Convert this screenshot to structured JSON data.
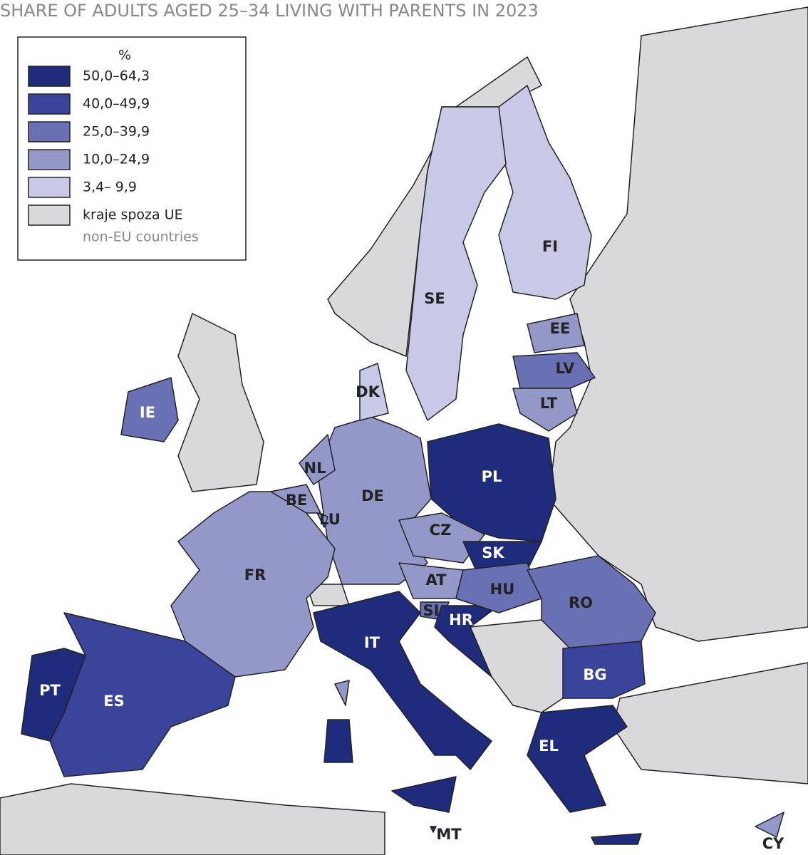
{
  "title": "SHARE OF ADULTS AGED 25–34 LIVING WITH PARENTS IN 2023",
  "legend": {
    "unit": "%",
    "items": [
      {
        "label": "50,0–64,3",
        "color": "#1f2b7b"
      },
      {
        "label": "40,0–49,9",
        "color": "#3a449a"
      },
      {
        "label": "25,0–39,9",
        "color": "#6a70b4"
      },
      {
        "label": "10,0–24,9",
        "color": "#9398c8"
      },
      {
        "label": "3,4– 9,9",
        "color": "#c7c9e6"
      },
      {
        "label": "kraje spoza UE",
        "sublabel": "non-EU countries",
        "color": "#d9d9dc"
      }
    ]
  },
  "countries": [
    {
      "label": "FI",
      "color": "#c7c9e6"
    },
    {
      "label": "SE",
      "color": "#c7c9e6"
    },
    {
      "label": "EE",
      "color": "#9398c8"
    },
    {
      "label": "LV",
      "color": "#6a70b4"
    },
    {
      "label": "LT",
      "color": "#9398c8"
    },
    {
      "label": "PL",
      "color": "#1f2b7b"
    },
    {
      "label": "DE",
      "color": "#9398c8"
    },
    {
      "label": "NL",
      "color": "#9398c8"
    },
    {
      "label": "BE",
      "color": "#9398c8"
    },
    {
      "label": "LU",
      "color": "#9398c8"
    },
    {
      "label": "DK",
      "color": "#c7c9e6"
    },
    {
      "label": "FR",
      "color": "#9398c8"
    },
    {
      "label": "CZ",
      "color": "#9398c8"
    },
    {
      "label": "SK",
      "color": "#1f2b7b"
    },
    {
      "label": "AT",
      "color": "#9398c8"
    },
    {
      "label": "SI",
      "color": "#6a70b4"
    },
    {
      "label": "HR",
      "color": "#1f2b7b"
    },
    {
      "label": "HU",
      "color": "#6a70b4"
    },
    {
      "label": "RO",
      "color": "#6a70b4"
    },
    {
      "label": "BG",
      "color": "#3a449a"
    },
    {
      "label": "EL",
      "color": "#1f2b7b"
    },
    {
      "label": "IT",
      "color": "#1f2b7b"
    },
    {
      "label": "ES",
      "color": "#3a449a"
    },
    {
      "label": "PT",
      "color": "#1f2b7b"
    },
    {
      "label": "IE",
      "color": "#6a70b4"
    },
    {
      "label": "MT",
      "color": "#1f2b7b"
    },
    {
      "label": "CY",
      "color": "#9398c8"
    }
  ]
}
